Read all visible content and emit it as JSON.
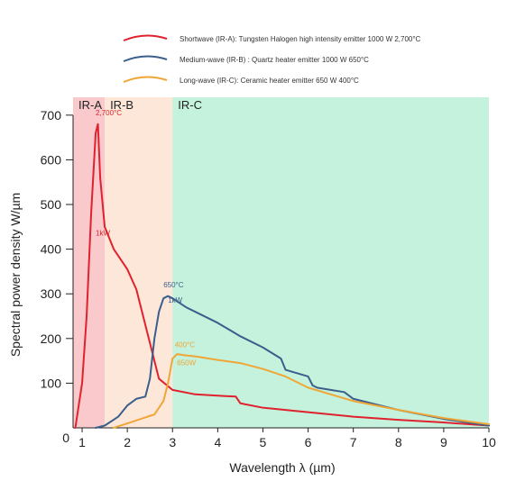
{
  "chart_data": {
    "type": "line",
    "xlabel": "Wavelength λ (µm)",
    "ylabel": "Spectral power density W/µm",
    "xlim": [
      0.8,
      10
    ],
    "ylim": [
      0,
      740
    ],
    "x_ticks": [
      1,
      2,
      3,
      4,
      5,
      6,
      7,
      8,
      9,
      10
    ],
    "y_ticks": [
      0,
      100,
      200,
      300,
      400,
      500,
      600,
      700
    ],
    "grid": false,
    "legend_position": "top",
    "regions": [
      {
        "label": "IR-A",
        "x_start": 0.8,
        "x_end": 1.5,
        "color": "#f9c9cc"
      },
      {
        "label": "IR-B",
        "x_start": 1.5,
        "x_end": 3.0,
        "color": "#fde7d8"
      },
      {
        "label": "IR-C",
        "x_start": 3.0,
        "x_end": 10.0,
        "color": "#c5f2dc"
      }
    ],
    "series": [
      {
        "name": "Shortwave (IR-A): Tungsten Halogen high intensity emitter 1000 W 2,700°C",
        "color": "#e0222e",
        "x": [
          0.85,
          1.0,
          1.1,
          1.2,
          1.3,
          1.35,
          1.4,
          1.5,
          1.7,
          2.0,
          2.2,
          2.5,
          2.7,
          3.0,
          3.5,
          4.0,
          4.4,
          4.5,
          5.0,
          6.0,
          7.0,
          8.0,
          9.0,
          10.0
        ],
        "y": [
          0,
          100,
          250,
          480,
          660,
          680,
          560,
          450,
          400,
          355,
          310,
          190,
          110,
          85,
          75,
          72,
          70,
          55,
          45,
          35,
          25,
          18,
          12,
          5
        ]
      },
      {
        "name": "Medium-wave (IR-B) : Quartz heater emitter 1000 W 650°C",
        "color": "#3a5f8c",
        "x": [
          1.3,
          1.5,
          1.8,
          2.0,
          2.2,
          2.4,
          2.5,
          2.6,
          2.7,
          2.8,
          2.9,
          3.0,
          3.3,
          3.5,
          4.0,
          4.5,
          5.0,
          5.4,
          5.5,
          6.0,
          6.1,
          6.2,
          6.5,
          6.8,
          7.0,
          8.0,
          9.0,
          10.0
        ],
        "y": [
          0,
          5,
          25,
          50,
          65,
          70,
          110,
          200,
          260,
          290,
          295,
          290,
          270,
          260,
          235,
          205,
          180,
          155,
          130,
          115,
          95,
          90,
          85,
          80,
          65,
          40,
          20,
          5
        ]
      },
      {
        "name": "Long-wave (IR-C): Ceramic heater emitter 650 W 400°C",
        "color": "#f0a637",
        "x": [
          1.7,
          2.0,
          2.3,
          2.6,
          2.8,
          2.9,
          3.0,
          3.1,
          3.3,
          3.5,
          4.0,
          4.5,
          5.0,
          5.5,
          6.0,
          6.5,
          7.0,
          8.0,
          9.0,
          10.0
        ],
        "y": [
          0,
          10,
          20,
          30,
          60,
          100,
          155,
          165,
          162,
          160,
          152,
          145,
          132,
          115,
          90,
          75,
          60,
          40,
          22,
          8
        ]
      }
    ],
    "annotations": [
      {
        "text": "2,700°C",
        "x": 1.3,
        "y": 700,
        "color": "#e0222e"
      },
      {
        "text": "1kW",
        "x": 1.3,
        "y": 430,
        "color": "#e0222e"
      },
      {
        "text": "650°C",
        "x": 2.8,
        "y": 315,
        "color": "#3a5f8c"
      },
      {
        "text": "1kW",
        "x": 2.9,
        "y": 280,
        "color": "#3a5f8c"
      },
      {
        "text": "400°C",
        "x": 3.05,
        "y": 180,
        "color": "#f0a637"
      },
      {
        "text": "650W",
        "x": 3.1,
        "y": 140,
        "color": "#f0a637"
      }
    ]
  }
}
